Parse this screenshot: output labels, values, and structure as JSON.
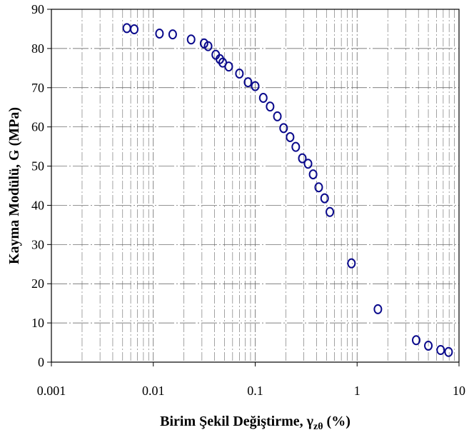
{
  "chart_data": {
    "type": "scatter",
    "xscale": "log",
    "xlim": [
      0.001,
      10
    ],
    "ylim": [
      0,
      90
    ],
    "grid": true,
    "legend": false,
    "xlabel": "Birim Şekil Değiştirme, γzθ (%)",
    "xlabel_parts": {
      "main": "Birim Şekil Değiştirme, ",
      "symbol": "γ",
      "subscript": "zθ",
      "end": " (%)"
    },
    "ylabel": "Kayma Modülü, G (MPa)",
    "x_tick_labels": [
      "0.001",
      "0.01",
      "0.1",
      "1",
      "10"
    ],
    "x_ticks": [
      0.001,
      0.01,
      0.1,
      1,
      10
    ],
    "y_tick_labels": [
      "0",
      "10",
      "20",
      "30",
      "40",
      "50",
      "60",
      "70",
      "80",
      "90"
    ],
    "y_ticks": [
      0,
      10,
      20,
      30,
      40,
      50,
      60,
      70,
      80,
      90
    ],
    "marker_color": "#0a0a8c",
    "series": [
      {
        "points": [
          [
            0.0055,
            85.2
          ],
          [
            0.0065,
            84.9
          ],
          [
            0.0115,
            83.8
          ],
          [
            0.0155,
            83.6
          ],
          [
            0.0235,
            82.3
          ],
          [
            0.0315,
            81.3
          ],
          [
            0.0345,
            80.6
          ],
          [
            0.041,
            78.4
          ],
          [
            0.045,
            77.3
          ],
          [
            0.048,
            76.4
          ],
          [
            0.055,
            75.4
          ],
          [
            0.07,
            73.6
          ],
          [
            0.085,
            71.4
          ],
          [
            0.1,
            70.4
          ],
          [
            0.12,
            67.4
          ],
          [
            0.14,
            65.2
          ],
          [
            0.165,
            62.7
          ],
          [
            0.19,
            59.7
          ],
          [
            0.22,
            57.4
          ],
          [
            0.25,
            54.9
          ],
          [
            0.29,
            52.0
          ],
          [
            0.33,
            50.6
          ],
          [
            0.37,
            47.9
          ],
          [
            0.42,
            44.6
          ],
          [
            0.48,
            41.8
          ],
          [
            0.54,
            38.3
          ],
          [
            0.88,
            25.2
          ],
          [
            1.6,
            13.5
          ],
          [
            3.8,
            5.6
          ],
          [
            5.0,
            4.2
          ],
          [
            6.6,
            3.1
          ],
          [
            7.9,
            2.6
          ]
        ]
      }
    ]
  }
}
